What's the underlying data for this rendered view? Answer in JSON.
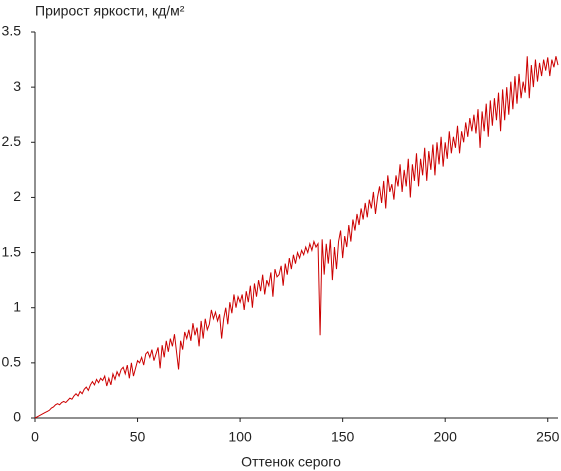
{
  "chart_data": {
    "type": "line",
    "title": "Прирост яркости, кд/м²",
    "xlabel": "Оттенок серого",
    "x": [
      0,
      1,
      2,
      3,
      4,
      5,
      6,
      7,
      8,
      9,
      10,
      11,
      12,
      13,
      14,
      15,
      16,
      17,
      18,
      19,
      20,
      21,
      22,
      23,
      24,
      25,
      26,
      27,
      28,
      29,
      30,
      31,
      32,
      33,
      34,
      35,
      36,
      37,
      38,
      39,
      40,
      41,
      42,
      43,
      44,
      45,
      46,
      47,
      48,
      49,
      50,
      51,
      52,
      53,
      54,
      55,
      56,
      57,
      58,
      59,
      60,
      61,
      62,
      63,
      64,
      65,
      66,
      67,
      68,
      69,
      70,
      71,
      72,
      73,
      74,
      75,
      76,
      77,
      78,
      79,
      80,
      81,
      82,
      83,
      84,
      85,
      86,
      87,
      88,
      89,
      90,
      91,
      92,
      93,
      94,
      95,
      96,
      97,
      98,
      99,
      100,
      101,
      102,
      103,
      104,
      105,
      106,
      107,
      108,
      109,
      110,
      111,
      112,
      113,
      114,
      115,
      116,
      117,
      118,
      119,
      120,
      121,
      122,
      123,
      124,
      125,
      126,
      127,
      128,
      129,
      130,
      131,
      132,
      133,
      134,
      135,
      136,
      137,
      138,
      139,
      140,
      141,
      142,
      143,
      144,
      145,
      146,
      147,
      148,
      149,
      150,
      151,
      152,
      153,
      154,
      155,
      156,
      157,
      158,
      159,
      160,
      161,
      162,
      163,
      164,
      165,
      166,
      167,
      168,
      169,
      170,
      171,
      172,
      173,
      174,
      175,
      176,
      177,
      178,
      179,
      180,
      181,
      182,
      183,
      184,
      185,
      186,
      187,
      188,
      189,
      190,
      191,
      192,
      193,
      194,
      195,
      196,
      197,
      198,
      199,
      200,
      201,
      202,
      203,
      204,
      205,
      206,
      207,
      208,
      209,
      210,
      211,
      212,
      213,
      214,
      215,
      216,
      217,
      218,
      219,
      220,
      221,
      222,
      223,
      224,
      225,
      226,
      227,
      228,
      229,
      230,
      231,
      232,
      233,
      234,
      235,
      236,
      237,
      238,
      239,
      240,
      241,
      242,
      243,
      244,
      245,
      246,
      247,
      248,
      249,
      250,
      251,
      252,
      253,
      254,
      255
    ],
    "series": [
      {
        "color": "#cc0000",
        "values": [
          0,
          0.01,
          0.02,
          0.03,
          0.04,
          0.05,
          0.06,
          0.07,
          0.09,
          0.1,
          0.12,
          0.13,
          0.12,
          0.14,
          0.15,
          0.14,
          0.16,
          0.18,
          0.17,
          0.2,
          0.22,
          0.2,
          0.24,
          0.22,
          0.26,
          0.28,
          0.25,
          0.3,
          0.33,
          0.3,
          0.35,
          0.32,
          0.36,
          0.34,
          0.38,
          0.29,
          0.36,
          0.3,
          0.4,
          0.35,
          0.42,
          0.38,
          0.44,
          0.46,
          0.4,
          0.48,
          0.36,
          0.5,
          0.38,
          0.45,
          0.52,
          0.5,
          0.55,
          0.48,
          0.58,
          0.6,
          0.55,
          0.62,
          0.52,
          0.58,
          0.64,
          0.45,
          0.66,
          0.55,
          0.7,
          0.6,
          0.72,
          0.65,
          0.76,
          0.6,
          0.44,
          0.7,
          0.62,
          0.78,
          0.72,
          0.8,
          0.7,
          0.86,
          0.75,
          0.82,
          0.65,
          0.88,
          0.72,
          0.9,
          0.8,
          0.85,
          0.98,
          0.9,
          0.96,
          0.88,
          0.94,
          0.72,
          0.9,
          1.0,
          0.85,
          1.05,
          0.95,
          1.12,
          1.0,
          1.1,
          1.05,
          1.12,
          0.98,
          1.15,
          1.05,
          1.2,
          1.0,
          1.22,
          1.1,
          1.25,
          1.15,
          1.3,
          1.12,
          1.25,
          1.2,
          1.32,
          1.1,
          1.35,
          1.28,
          1.3,
          1.38,
          1.2,
          1.4,
          1.3,
          1.45,
          1.35,
          1.48,
          1.4,
          1.5,
          1.45,
          1.52,
          1.48,
          1.55,
          1.5,
          1.58,
          1.52,
          1.6,
          1.55,
          1.58,
          0.75,
          1.62,
          1.3,
          1.58,
          1.4,
          1.62,
          1.25,
          1.55,
          1.35,
          1.6,
          1.7,
          1.45,
          1.65,
          1.55,
          1.75,
          1.6,
          1.8,
          1.7,
          1.85,
          1.75,
          1.9,
          1.8,
          1.95,
          1.82,
          1.98,
          1.9,
          2.05,
          1.85,
          2.0,
          2.1,
          1.95,
          2.15,
          1.9,
          2.2,
          2.05,
          2.12,
          1.98,
          2.2,
          2.1,
          2.3,
          2.05,
          2.25,
          2.1,
          2.35,
          2.0,
          2.3,
          2.15,
          2.4,
          2.1,
          2.35,
          2.2,
          2.45,
          2.15,
          2.42,
          2.25,
          2.48,
          2.2,
          2.5,
          2.3,
          2.55,
          2.28,
          2.5,
          2.35,
          2.6,
          2.4,
          2.55,
          2.45,
          2.65,
          2.4,
          2.6,
          2.5,
          2.68,
          2.55,
          2.72,
          2.6,
          2.75,
          2.58,
          2.8,
          2.45,
          2.78,
          2.6,
          2.85,
          2.55,
          2.88,
          2.65,
          2.9,
          2.7,
          2.95,
          2.6,
          2.98,
          2.7,
          3.0,
          2.75,
          3.05,
          2.8,
          3.1,
          2.85,
          3.12,
          2.9,
          3.05,
          2.95,
          3.28,
          2.9,
          3.2,
          3.0,
          3.25,
          3.05,
          3.22,
          3.1,
          3.25,
          3.15,
          3.27,
          3.1,
          3.25,
          3.18,
          3.28,
          3.2
        ]
      }
    ],
    "xlim": [
      0,
      255
    ],
    "xticks": [
      0,
      50,
      100,
      150,
      200,
      250
    ],
    "ylim": [
      0,
      3.5
    ],
    "yticks": [
      0,
      0.5,
      1,
      1.5,
      2,
      2.5,
      3,
      3.5
    ]
  }
}
